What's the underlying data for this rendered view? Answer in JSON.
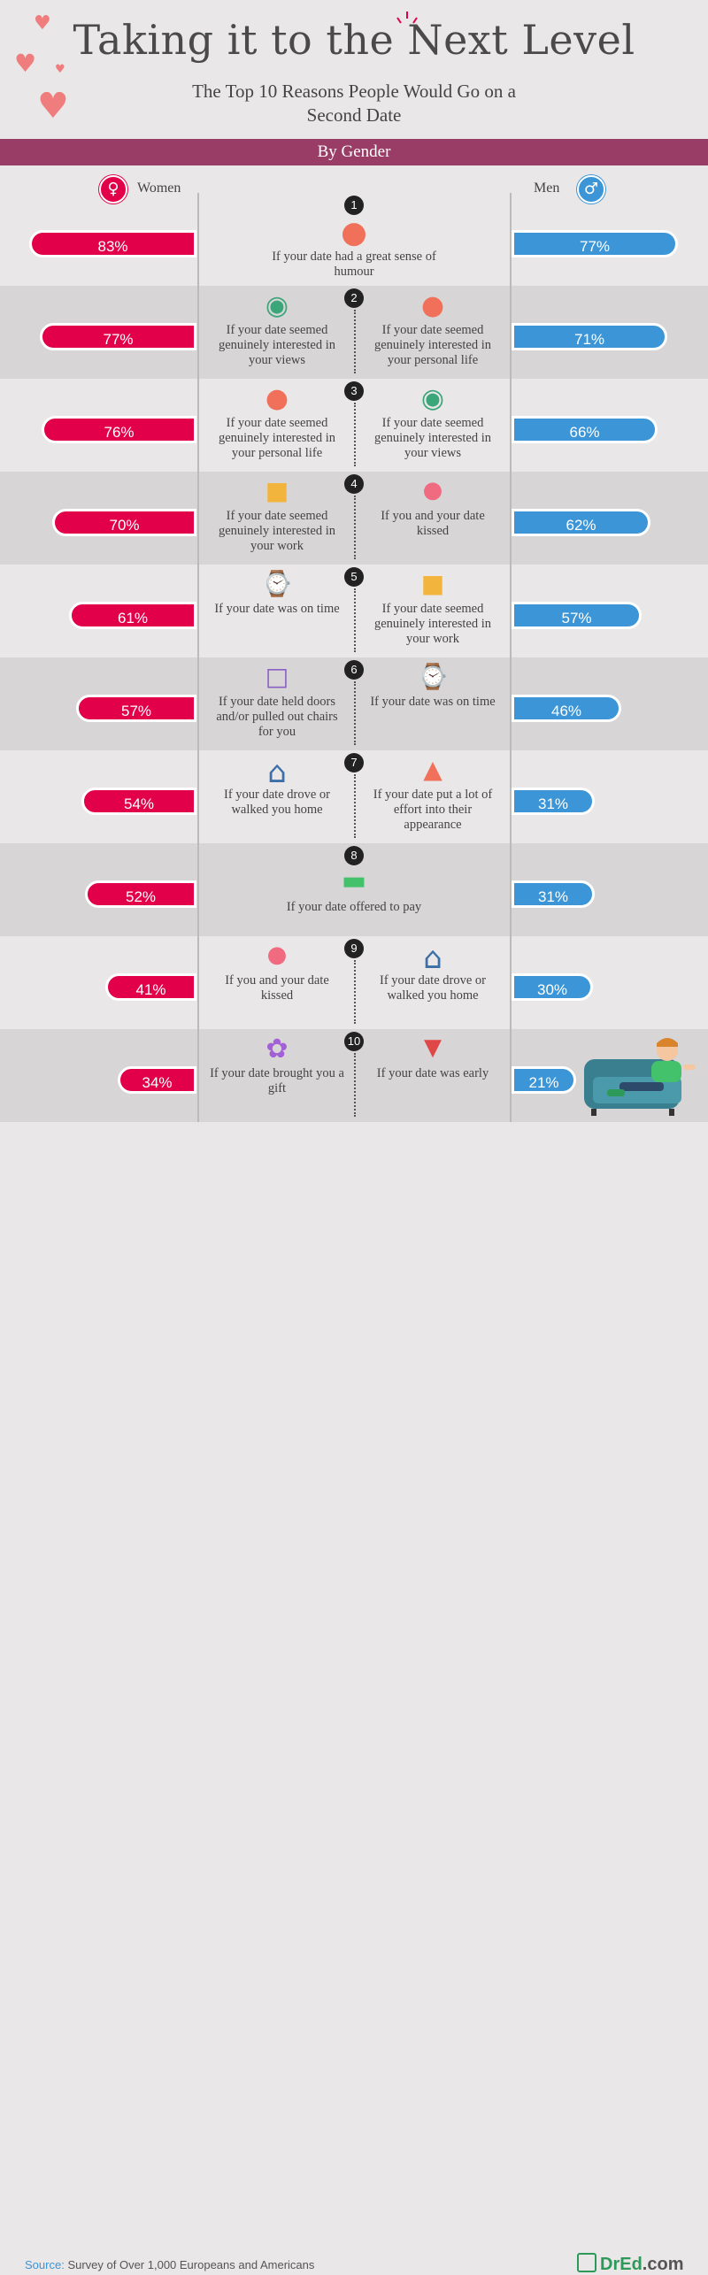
{
  "title": "Taking it to the Next Level",
  "subtitle": "The Top 10 Reasons People Would Go on a Second Date",
  "band": "By Gender",
  "labels": {
    "women": "Women",
    "men": "Men"
  },
  "source_label": "Source:",
  "source_text": "Survey of Over 1,000 Europeans and Americans",
  "logo_dr": "DrEd",
  "logo_suffix": ".com",
  "colors": {
    "women": "#e2004a",
    "men": "#3c95d6",
    "band": "#9a3d66"
  },
  "chart_data": {
    "type": "bar",
    "title": "Taking it to the Next Level",
    "subtitle": "The Top 10 Reasons People Would Go on a Second Date",
    "series": [
      {
        "name": "Women",
        "values": [
          83,
          77,
          76,
          70,
          61,
          57,
          54,
          52,
          41,
          34
        ]
      },
      {
        "name": "Men",
        "values": [
          77,
          71,
          66,
          62,
          57,
          46,
          31,
          31,
          30,
          21
        ]
      }
    ],
    "unit": "%",
    "rows": [
      {
        "rank": "1",
        "shared": "If your date had a great sense of humour",
        "women_reason": "",
        "men_reason": "",
        "shared_icon": "laughing-face-icon"
      },
      {
        "rank": "2",
        "women_reason": "If your date seemed genuinely interested in your views",
        "men_reason": "If your date seemed genuinely interested in your personal life",
        "women_icon": "eye-icon",
        "men_icon": "girl-face-icon"
      },
      {
        "rank": "3",
        "women_reason": "If your date seemed genuinely interested in your personal life",
        "men_reason": "If your date seemed genuinely interested in your views",
        "women_icon": "girl-face-icon",
        "men_icon": "eye-icon"
      },
      {
        "rank": "4",
        "women_reason": "If your date seemed genuinely interested in your work",
        "men_reason": "If you and your date kissed",
        "women_icon": "briefcase-icon",
        "men_icon": "lips-icon"
      },
      {
        "rank": "5",
        "women_reason": "If your date was on time",
        "men_reason": "If your date seemed genuinely interested in your work",
        "women_icon": "watch-icon",
        "men_icon": "briefcase-icon"
      },
      {
        "rank": "6",
        "women_reason": "If your date held doors and/or pulled out chairs for you",
        "men_reason": "If your date was on time",
        "women_icon": "chair-icon",
        "men_icon": "watch-icon"
      },
      {
        "rank": "7",
        "women_reason": "If your date drove or walked you home",
        "men_reason": "If your date put a lot of effort into their appearance",
        "women_icon": "house-icon",
        "men_icon": "dress-icon"
      },
      {
        "rank": "8",
        "shared": "If your date offered to pay",
        "women_reason": "",
        "men_reason": "",
        "shared_icon": "money-icon"
      },
      {
        "rank": "9",
        "women_reason": "If you and your date kissed",
        "men_reason": "If your date drove or walked you home",
        "women_icon": "lips-icon",
        "men_icon": "house-icon"
      },
      {
        "rank": "10",
        "women_reason": "If your date brought you a gift",
        "men_reason": "If your date was early",
        "women_icon": "flower-icon",
        "men_icon": "rooster-icon"
      }
    ]
  }
}
